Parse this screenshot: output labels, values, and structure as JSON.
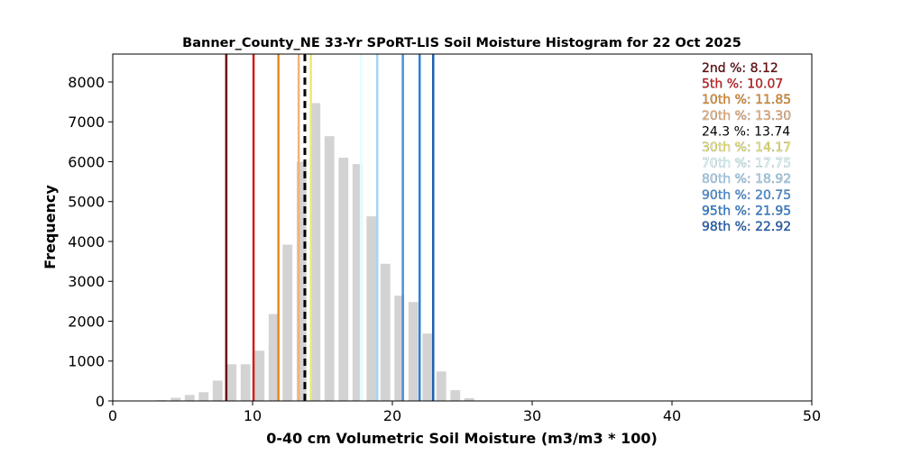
{
  "chart_data": {
    "type": "bar",
    "title": "Banner_County_NE 33-Yr SPoRT-LIS Soil Moisture Histogram for 22 Oct 2025",
    "xlabel": "0-40 cm Volumetric Soil Moisture (m3/m3 * 100)",
    "ylabel": "Frequency",
    "xlim": [
      0,
      50
    ],
    "ylim": [
      0,
      8700
    ],
    "xticks": [
      0,
      10,
      20,
      30,
      40,
      50
    ],
    "yticks": [
      0,
      1000,
      2000,
      3000,
      4000,
      5000,
      6000,
      7000,
      8000
    ],
    "grid": false,
    "bar_color": "#d3d3d3",
    "bars": [
      {
        "x": 3.5,
        "value": 20
      },
      {
        "x": 4.5,
        "value": 80
      },
      {
        "x": 5.5,
        "value": 150
      },
      {
        "x": 6.5,
        "value": 220
      },
      {
        "x": 7.5,
        "value": 510
      },
      {
        "x": 8.5,
        "value": 920
      },
      {
        "x": 9.5,
        "value": 920
      },
      {
        "x": 10.5,
        "value": 1260
      },
      {
        "x": 11.5,
        "value": 2180
      },
      {
        "x": 12.5,
        "value": 3920
      },
      {
        "x": 13.5,
        "value": 6000
      },
      {
        "x": 14.5,
        "value": 7470
      },
      {
        "x": 15.5,
        "value": 6640
      },
      {
        "x": 16.5,
        "value": 6100
      },
      {
        "x": 17.5,
        "value": 5940
      },
      {
        "x": 18.5,
        "value": 4630
      },
      {
        "x": 19.5,
        "value": 3440
      },
      {
        "x": 20.5,
        "value": 2640
      },
      {
        "x": 21.5,
        "value": 2480
      },
      {
        "x": 22.5,
        "value": 1690
      },
      {
        "x": 23.5,
        "value": 740
      },
      {
        "x": 24.5,
        "value": 270
      },
      {
        "x": 25.5,
        "value": 70
      }
    ],
    "percentile_lines": [
      {
        "label": "2nd %: 8.12",
        "value": 8.12,
        "color": "#6b0c0c",
        "dashed": false
      },
      {
        "label": "5th %: 10.07",
        "value": 10.07,
        "color": "#d01c1c",
        "dashed": false
      },
      {
        "label": "10th %: 11.85",
        "value": 11.85,
        "color": "#e88a20",
        "dashed": false
      },
      {
        "label": "20th %: 13.30",
        "value": 13.3,
        "color": "#f2b27a",
        "dashed": false
      },
      {
        "label": "24.3 %: 13.74",
        "value": 13.74,
        "color": "#000000",
        "dashed": true
      },
      {
        "label": "30th %: 14.17",
        "value": 14.17,
        "color": "#f0ea6a",
        "dashed": false
      },
      {
        "label": "70th %: 17.75",
        "value": 17.75,
        "color": "#e0ffff",
        "dashed": false
      },
      {
        "label": "80th %: 18.92",
        "value": 18.92,
        "color": "#a6d4f2",
        "dashed": false
      },
      {
        "label": "90th %: 20.75",
        "value": 20.75,
        "color": "#4a90d9",
        "dashed": false
      },
      {
        "label": "95th %: 21.95",
        "value": 21.95,
        "color": "#2f7fd6",
        "dashed": false
      },
      {
        "label": "98th %: 22.92",
        "value": 22.92,
        "color": "#1f5fb4",
        "dashed": false
      }
    ],
    "legend_placement": "top-right"
  }
}
